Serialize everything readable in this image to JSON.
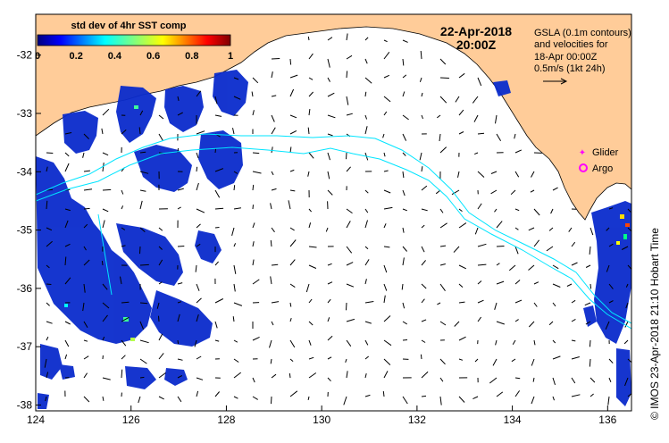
{
  "colorbar": {
    "title": "std dev of 4hr SST comp",
    "ticks": [
      "0",
      "0.2",
      "0.4",
      "0.6",
      "0.8",
      "1"
    ],
    "range": [
      0,
      1
    ]
  },
  "date": {
    "line1": "22-Apr-2018",
    "line2": "20:00Z"
  },
  "info": {
    "line1": "GSLA (0.1m contours)",
    "line2": "and velocities for",
    "line3": "18-Apr 00:00Z",
    "line4": "0.5m/s (1kt 24h)"
  },
  "legend": {
    "glider": "Glider",
    "argo": "Argo",
    "glider_color": "#ff00ff",
    "argo_color": "#ff00ff"
  },
  "credit": "© IMOS 23-Apr-2018 21:10 Hobart Time",
  "axes": {
    "x_ticks": [
      "124",
      "126",
      "128",
      "130",
      "132",
      "134",
      "136"
    ],
    "y_ticks": [
      "-32",
      "-33",
      "-34",
      "-35",
      "-36",
      "-37",
      "-38"
    ],
    "x_range": [
      124,
      136.5
    ],
    "y_range": [
      -38.1,
      -31.3
    ]
  },
  "colors": {
    "land": "#ffcc99",
    "ocean": "#ffffff",
    "sst_low": "#0a2bcc",
    "contour": "#00e5ff",
    "vectors": "#000000"
  }
}
